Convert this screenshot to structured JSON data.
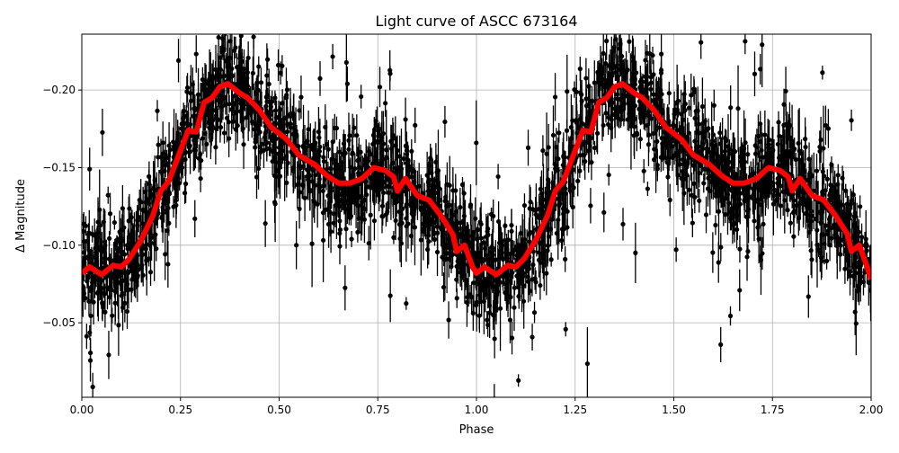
{
  "chart_data": {
    "type": "scatter",
    "title": "Light curve of ASCC 673164",
    "xlabel": "Phase",
    "ylabel": "Δ Magnitude",
    "xlim": [
      0.0,
      2.0
    ],
    "ylim": [
      -0.002,
      -0.236
    ],
    "y_inverted": true,
    "grid": true,
    "x_ticks": [
      "0.00",
      "0.25",
      "0.50",
      "0.75",
      "1.00",
      "1.25",
      "1.50",
      "1.75",
      "2.00"
    ],
    "x_tick_values": [
      0,
      0.25,
      0.5,
      0.75,
      1,
      1.25,
      1.5,
      1.75,
      2
    ],
    "y_ticks": [
      "−0.20",
      "−0.15",
      "−0.10",
      "−0.05"
    ],
    "y_tick_values": [
      -0.2,
      -0.15,
      -0.1,
      -0.05
    ],
    "colors": {
      "points": "#000000",
      "model": "#ff0000",
      "grid": "#b0b0b0"
    },
    "series": [
      {
        "kind": "errorbar-points",
        "description_of_values": "dense photometric points with error bars scattered about the model curve",
        "scatter_sigma": 0.018
      },
      {
        "kind": "line",
        "x": [
          0.0,
          0.02,
          0.05,
          0.08,
          0.1,
          0.12,
          0.15,
          0.18,
          0.2,
          0.22,
          0.25,
          0.27,
          0.29,
          0.31,
          0.33,
          0.35,
          0.37,
          0.4,
          0.42,
          0.45,
          0.48,
          0.52,
          0.55,
          0.59,
          0.62,
          0.65,
          0.68,
          0.71,
          0.74,
          0.77,
          0.79,
          0.8,
          0.82,
          0.85,
          0.88,
          0.91,
          0.94,
          0.95,
          0.97,
          0.99,
          1.0,
          1.02,
          1.05,
          1.08,
          1.1,
          1.12,
          1.15,
          1.18,
          1.2,
          1.22,
          1.25,
          1.27,
          1.29,
          1.31,
          1.33,
          1.35,
          1.37,
          1.4,
          1.42,
          1.45,
          1.48,
          1.52,
          1.55,
          1.59,
          1.62,
          1.65,
          1.68,
          1.71,
          1.74,
          1.77,
          1.79,
          1.8,
          1.82,
          1.85,
          1.88,
          1.91,
          1.94,
          1.95,
          1.97,
          1.99,
          2.0
        ],
        "y": [
          -0.082,
          -0.086,
          -0.081,
          -0.087,
          -0.086,
          -0.091,
          -0.103,
          -0.119,
          -0.135,
          -0.141,
          -0.161,
          -0.174,
          -0.173,
          -0.192,
          -0.195,
          -0.202,
          -0.204,
          -0.198,
          -0.195,
          -0.187,
          -0.176,
          -0.168,
          -0.158,
          -0.152,
          -0.145,
          -0.14,
          -0.14,
          -0.143,
          -0.15,
          -0.148,
          -0.144,
          -0.135,
          -0.143,
          -0.132,
          -0.129,
          -0.119,
          -0.107,
          -0.096,
          -0.1,
          -0.086,
          -0.082,
          -0.086,
          -0.081,
          -0.087,
          -0.086,
          -0.091,
          -0.103,
          -0.119,
          -0.135,
          -0.141,
          -0.161,
          -0.174,
          -0.173,
          -0.192,
          -0.195,
          -0.202,
          -0.204,
          -0.198,
          -0.195,
          -0.187,
          -0.176,
          -0.168,
          -0.158,
          -0.152,
          -0.145,
          -0.14,
          -0.14,
          -0.143,
          -0.15,
          -0.148,
          -0.144,
          -0.135,
          -0.143,
          -0.132,
          -0.129,
          -0.119,
          -0.107,
          -0.096,
          -0.1,
          -0.086,
          -0.078
        ]
      }
    ]
  }
}
